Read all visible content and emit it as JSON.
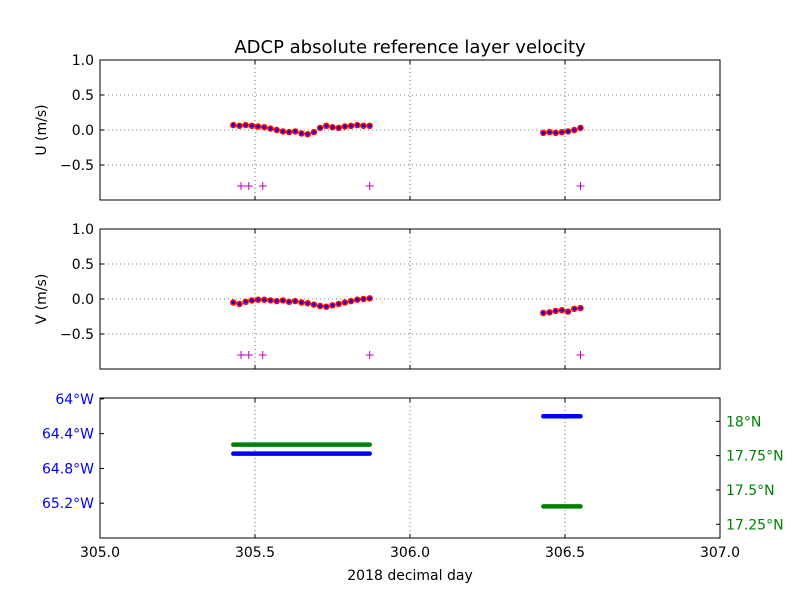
{
  "chart_data": {
    "type": "scatter",
    "title": "ADCP absolute reference layer velocity",
    "xlabel": "2018 decimal day",
    "xlim": [
      305.0,
      307.0
    ],
    "xticks": [
      "305.0",
      "305.5",
      "306.0",
      "306.5",
      "307.0"
    ],
    "xtick_values": [
      305.0,
      305.5,
      306.0,
      306.5,
      307.0
    ],
    "grid": true,
    "colors": {
      "velocity_outer": "#ff0000",
      "velocity_inner": "#0000ff",
      "flag_marker": "#bf00bf",
      "longitude": "#0000ff",
      "latitude": "#008000",
      "grid": "#000000",
      "axes": "#000000"
    },
    "panels": [
      {
        "id": "u",
        "ylabel": "U (m/s)",
        "ylim": [
          -1.0,
          1.0
        ],
        "yticks": [
          "1.0",
          "0.5",
          "0.0",
          "−0.5"
        ],
        "ytick_values": [
          1.0,
          0.5,
          0.0,
          -0.5
        ],
        "series": [
          {
            "x": [
              305.43,
              305.45,
              305.47,
              305.49,
              305.51,
              305.53,
              305.55,
              305.57,
              305.59,
              305.61,
              305.63,
              305.65,
              305.67,
              305.69,
              305.71,
              305.73,
              305.75,
              305.77,
              305.79,
              305.81,
              305.83,
              305.85,
              305.87,
              306.43,
              306.45,
              306.47,
              306.49,
              306.51,
              306.53,
              306.55
            ],
            "y": [
              0.07,
              0.06,
              0.07,
              0.06,
              0.05,
              0.04,
              0.02,
              0.0,
              -0.02,
              -0.03,
              -0.02,
              -0.05,
              -0.06,
              -0.03,
              0.03,
              0.06,
              0.04,
              0.03,
              0.05,
              0.06,
              0.07,
              0.06,
              0.06,
              -0.04,
              -0.03,
              -0.04,
              -0.03,
              -0.02,
              0.0,
              0.03
            ]
          }
        ],
        "flags": {
          "x": [
            305.455,
            305.48,
            305.525,
            305.87,
            306.55
          ],
          "y": -0.8
        }
      },
      {
        "id": "v",
        "ylabel": "V (m/s)",
        "ylim": [
          -1.0,
          1.0
        ],
        "yticks": [
          "1.0",
          "0.5",
          "0.0",
          "−0.5"
        ],
        "ytick_values": [
          1.0,
          0.5,
          0.0,
          -0.5
        ],
        "series": [
          {
            "x": [
              305.43,
              305.45,
              305.47,
              305.49,
              305.51,
              305.53,
              305.55,
              305.57,
              305.59,
              305.61,
              305.63,
              305.65,
              305.67,
              305.69,
              305.71,
              305.73,
              305.75,
              305.77,
              305.79,
              305.81,
              305.83,
              305.85,
              305.87,
              306.43,
              306.45,
              306.47,
              306.49,
              306.51,
              306.53,
              306.55
            ],
            "y": [
              -0.05,
              -0.07,
              -0.04,
              -0.02,
              -0.01,
              -0.01,
              -0.02,
              -0.03,
              -0.02,
              -0.04,
              -0.03,
              -0.05,
              -0.06,
              -0.08,
              -0.1,
              -0.11,
              -0.09,
              -0.07,
              -0.05,
              -0.03,
              -0.01,
              0.0,
              0.01,
              -0.2,
              -0.19,
              -0.17,
              -0.16,
              -0.18,
              -0.14,
              -0.13
            ]
          }
        ],
        "flags": {
          "x": [
            305.455,
            305.48,
            305.525,
            305.87,
            306.55
          ],
          "y": -0.8
        }
      },
      {
        "id": "position",
        "left_axis": {
          "ylim_deg": [
            -63.99,
            -65.6
          ],
          "yticks": [
            "64°W",
            "64.4°W",
            "64.8°W",
            "65.2°W"
          ],
          "ytick_values": [
            -64.0,
            -64.4,
            -64.8,
            -65.2
          ]
        },
        "right_axis": {
          "ylim_deg": [
            17.15,
            18.17
          ],
          "yticks": [
            "18°N",
            "17.75°N",
            "17.5°N",
            "17.25°N"
          ],
          "ytick_values": [
            18.0,
            17.75,
            17.5,
            17.25
          ]
        },
        "longitude": {
          "segments": [
            {
              "x": [
                305.43,
                305.87
              ],
              "y": -64.63
            },
            {
              "x": [
                306.43,
                306.55
              ],
              "y": -64.2
            }
          ]
        },
        "latitude": {
          "segments": [
            {
              "x": [
                305.43,
                305.87
              ],
              "y": 17.83
            },
            {
              "x": [
                306.43,
                306.55
              ],
              "y": 17.38
            }
          ]
        }
      }
    ]
  }
}
